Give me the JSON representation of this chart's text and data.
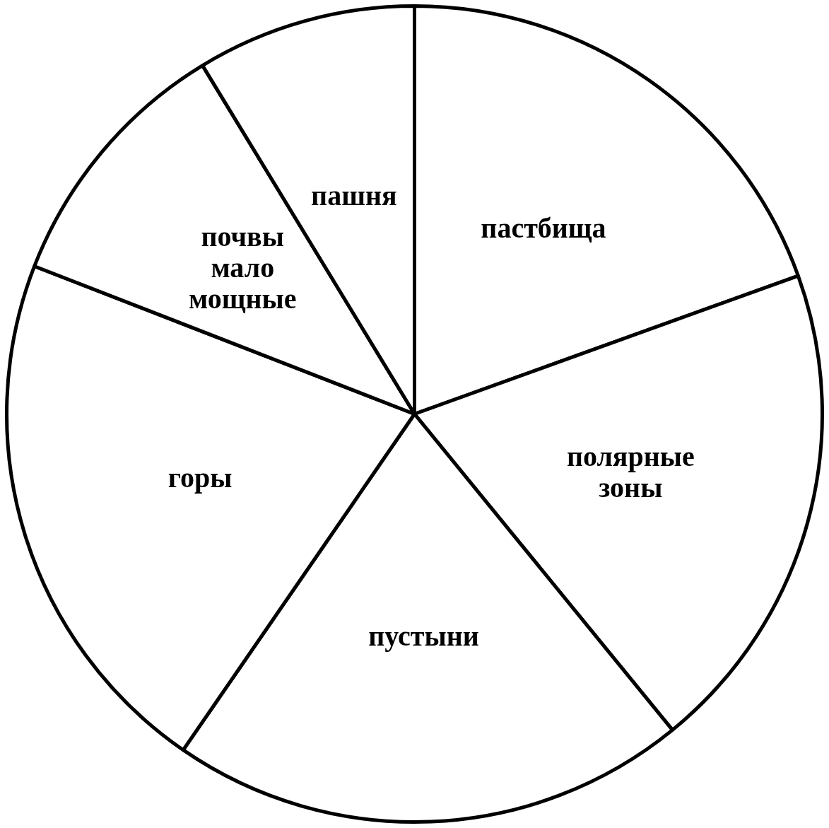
{
  "chart_data": {
    "type": "pie",
    "categories": [
      "пастбища",
      "полярные зоны",
      "пустыни",
      "горы",
      "почвы мало мощные",
      "пашня"
    ],
    "values": [
      19.5,
      19.6,
      20.5,
      21.3,
      10.4,
      8.7
    ],
    "colors": [
      "#ffffff",
      "#ffffff",
      "#ffffff",
      "#ffffff",
      "#ffffff",
      "#ffffff"
    ],
    "legend": false
  }
}
